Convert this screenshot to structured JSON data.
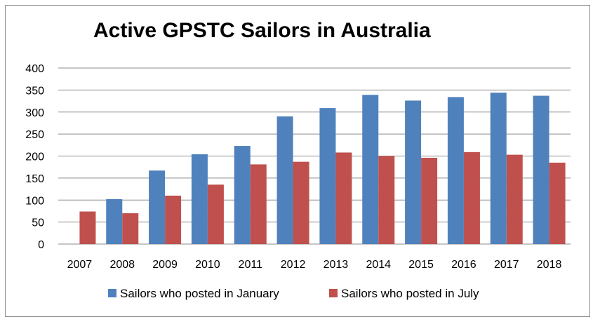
{
  "chart_data": {
    "type": "bar",
    "title": "Active GPSTC Sailors in Australia",
    "xlabel": "",
    "ylabel": "",
    "ylim": [
      0,
      400
    ],
    "yticks": [
      0,
      50,
      100,
      150,
      200,
      250,
      300,
      350,
      400
    ],
    "grid": true,
    "legend_position": "bottom",
    "categories": [
      "2007",
      "2008",
      "2009",
      "2010",
      "2011",
      "2012",
      "2013",
      "2014",
      "2015",
      "2016",
      "2017",
      "2018"
    ],
    "series": [
      {
        "name": "Sailors who posted in January",
        "color": "#4f81bd",
        "values": [
          null,
          102,
          167,
          204,
          223,
          290,
          309,
          339,
          326,
          334,
          344,
          337
        ]
      },
      {
        "name": "Sailors who posted in July",
        "color": "#c0504d",
        "values": [
          74,
          70,
          110,
          135,
          181,
          187,
          208,
          200,
          196,
          209,
          203,
          185
        ]
      }
    ]
  }
}
